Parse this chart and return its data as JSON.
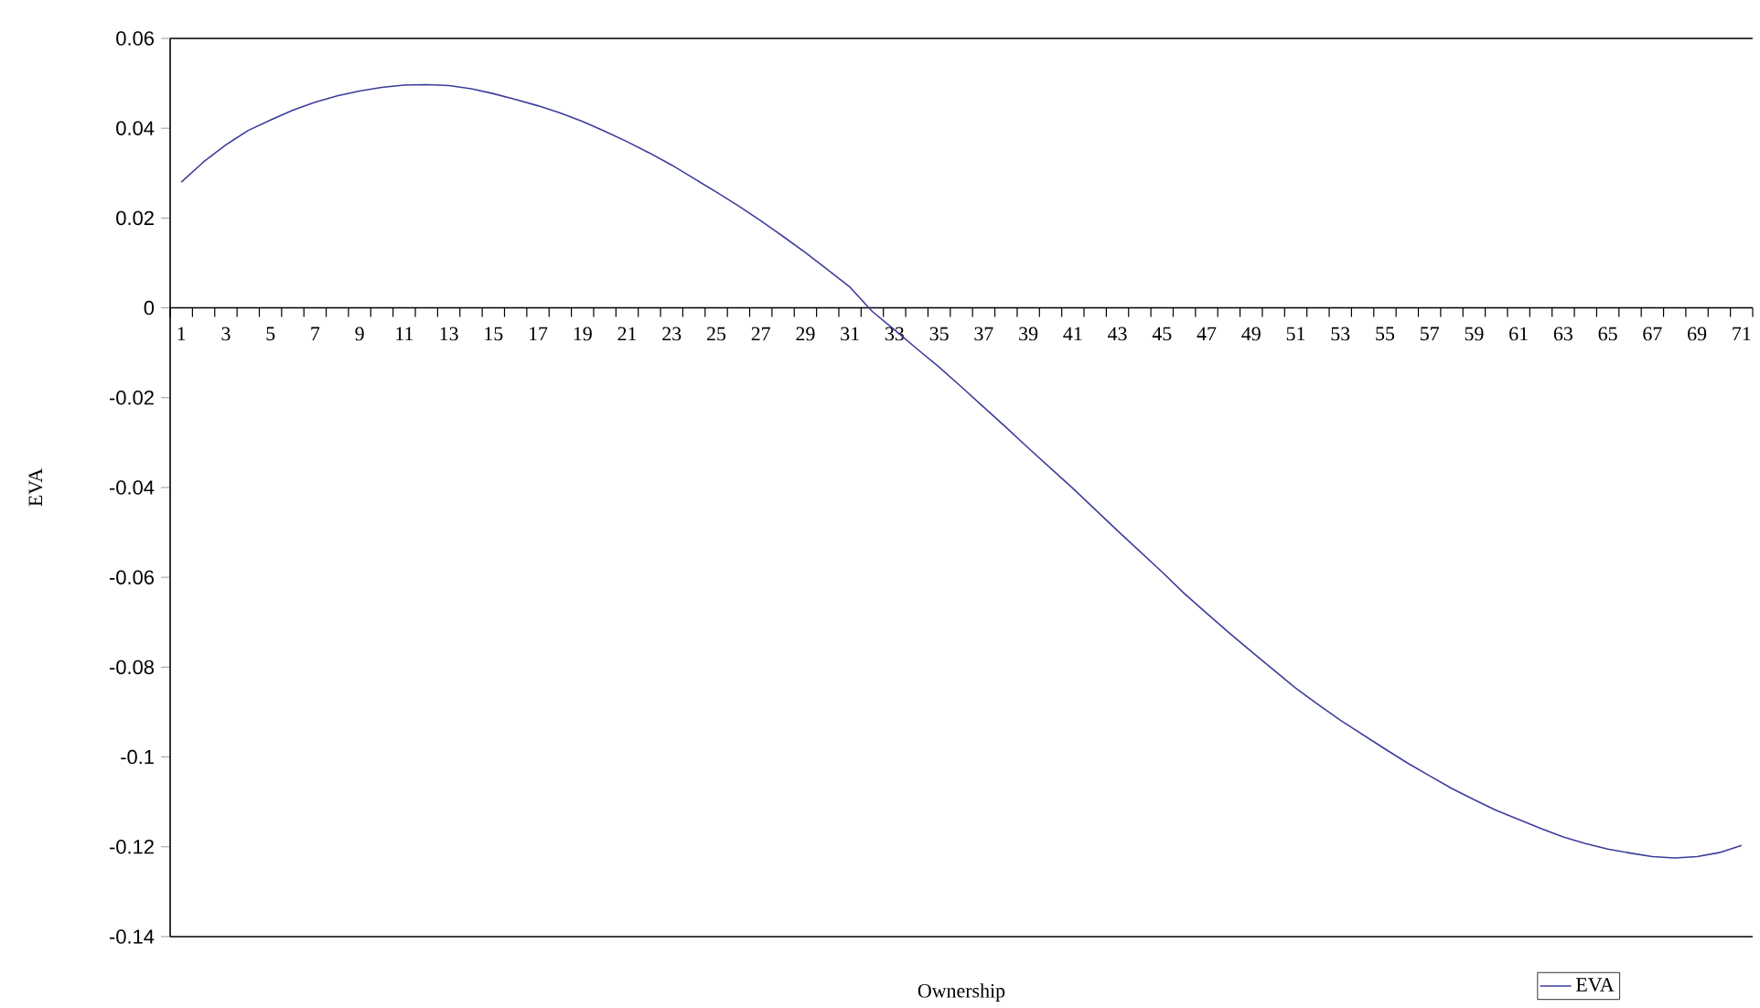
{
  "chart_data": {
    "type": "line",
    "xlabel": "Ownership",
    "ylabel": "EVA",
    "categories": [
      "1",
      null,
      "3",
      null,
      "5",
      null,
      "7",
      null,
      "9",
      null,
      "11",
      null,
      "13",
      null,
      "15",
      null,
      "17",
      null,
      "19",
      null,
      "21",
      null,
      "23",
      null,
      "25",
      null,
      "27",
      null,
      "29",
      null,
      "31",
      null,
      "33",
      null,
      "35",
      null,
      "37",
      null,
      "39",
      null,
      "41",
      null,
      "43",
      null,
      "45",
      null,
      "47",
      null,
      "49",
      null,
      "51",
      null,
      "53",
      null,
      "55",
      null,
      "57",
      null,
      "59",
      null,
      "61",
      null,
      "63",
      null,
      "65",
      null,
      "67",
      null,
      "69",
      null,
      "71"
    ],
    "series": [
      {
        "name": "EVA",
        "color": "#3c3c9c",
        "values": [
          0.028,
          0.0325,
          0.0363,
          0.0395,
          0.0418,
          0.044,
          0.0458,
          0.0472,
          0.0483,
          0.0491,
          0.0496,
          0.0497,
          0.0495,
          0.0488,
          0.0477,
          0.0464,
          0.045,
          0.0434,
          0.0415,
          0.0393,
          0.037,
          0.0345,
          0.0318,
          0.0288,
          0.0258,
          0.0227,
          0.0194,
          0.0159,
          0.0123,
          0.0085,
          0.0046,
          -0.0008,
          -0.0049,
          -0.0091,
          -0.0132,
          -0.0176,
          -0.0221,
          -0.0266,
          -0.0312,
          -0.0357,
          -0.0402,
          -0.0449,
          -0.0496,
          -0.0542,
          -0.0588,
          -0.0636,
          -0.068,
          -0.0723,
          -0.0765,
          -0.0806,
          -0.0847,
          -0.0883,
          -0.0918,
          -0.095,
          -0.0982,
          -0.1013,
          -0.1042,
          -0.107,
          -0.1095,
          -0.1119,
          -0.1139,
          -0.1159,
          -0.1178,
          -0.1193,
          -0.1205,
          -0.1214,
          -0.1222,
          -0.1225,
          -0.1222,
          -0.1213,
          -0.1197
        ]
      }
    ],
    "ylim": [
      -0.14,
      0.06
    ],
    "yticks": [
      0.06,
      0.04,
      0.02,
      0,
      -0.02,
      -0.04,
      -0.06,
      -0.08,
      -0.1,
      -0.12,
      -0.14
    ],
    "grid": false,
    "legend": "bottom right",
    "marker": "none",
    "line_style": "solid"
  }
}
